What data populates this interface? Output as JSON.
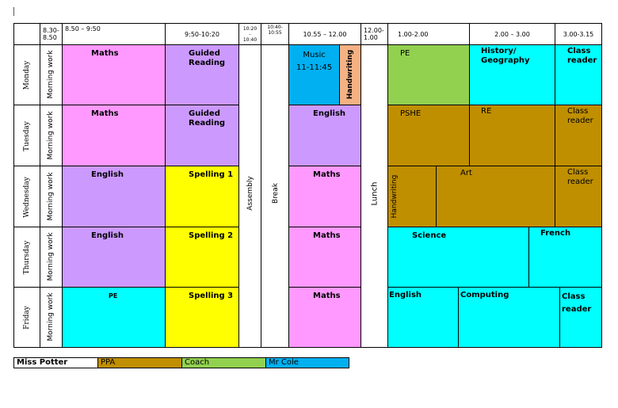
{
  "header": {
    "t1": "8.30-\n8.50",
    "t2": "8.50 – 9:50",
    "t3": "9:50-10:20",
    "t4": "10:20\n-\n10:40",
    "t5": "10:40-\n10:55",
    "t6": "10.55 – 12.00",
    "t7": "12.00-\n1.00",
    "t8": "1.00-2.00",
    "t9": "2.00 – 3.00",
    "t10": "3.00-3.15"
  },
  "days": [
    "Monday",
    "Tuesday",
    "Wednesday",
    "Thursday",
    "Friday"
  ],
  "morning": "Morning work",
  "assembly": "Assembly",
  "brk": "Break",
  "lunch": "Lunch",
  "mon": {
    "maths": "Maths",
    "guided": "Guided\nReading",
    "music": "Music\n11-11:45",
    "handwriting": "Handwriting",
    "pe": "PE",
    "histgeo": "History/\nGeography",
    "class": "Class\nreader"
  },
  "tue": {
    "maths": "Maths",
    "guided": "Guided\nReading",
    "english": "English",
    "pshe": "PSHE",
    "re": "RE",
    "class": "Class\nreader"
  },
  "wed": {
    "english": "English",
    "spelling": "Spelling 1",
    "maths": "Maths",
    "handwriting": "Handwriting",
    "art": "Art",
    "class": "Class\nreader"
  },
  "thu": {
    "english": "English",
    "spelling": "Spelling 2",
    "maths": "Maths",
    "science": "Science",
    "french": "French"
  },
  "fri": {
    "pe": "PE",
    "spelling": "Spelling 3",
    "maths": "Maths",
    "english": "English",
    "computing": "Computing",
    "class": "Class\nreader"
  },
  "legend": {
    "teacher": "Miss Potter",
    "ppa": "PPA",
    "coach": "Coach",
    "mrcole": "Mr Cole"
  },
  "colors": {
    "maths": "#ff99ff",
    "english": "#cc99ff",
    "spelling": "#ffff00",
    "cyan": "#00ffff",
    "music": "#00b0f0",
    "handwriting": "#f4b183",
    "pe_coach": "#92d050",
    "ppa": "#bf8f00"
  }
}
